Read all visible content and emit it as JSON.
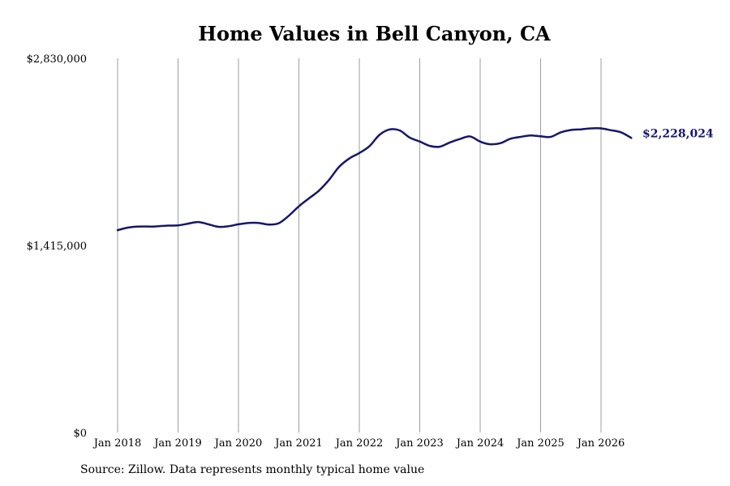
{
  "colors": {
    "line": "#16176b",
    "gridline": "#9e9e9e",
    "text": "#000000"
  },
  "chart_data": {
    "type": "line",
    "title": "Home Values in Bell Canyon, CA",
    "xlabel": "",
    "ylabel": "",
    "ylim": [
      0,
      2830000
    ],
    "y_ticks": [
      0,
      1415000,
      2830000
    ],
    "y_tick_labels": [
      "$0",
      "$1,415,000",
      "$2,830,000"
    ],
    "x_ticks": [
      "2018-01",
      "2019-01",
      "2020-01",
      "2021-01",
      "2022-01",
      "2023-01",
      "2024-01",
      "2025-01",
      "2026-01"
    ],
    "x_tick_labels": [
      "Jan 2018",
      "Jan 2019",
      "Jan 2020",
      "Jan 2021",
      "Jan 2022",
      "Jan 2023",
      "Jan 2024",
      "Jan 2025",
      "Jan 2026"
    ],
    "grid": "vertical",
    "end_label": "$2,228,024",
    "series": [
      {
        "x": [
          "2018-01",
          "2018-03",
          "2018-05",
          "2018-08",
          "2018-11",
          "2019-01",
          "2019-03",
          "2019-05",
          "2019-07",
          "2019-09",
          "2019-11",
          "2020-01",
          "2020-03",
          "2020-05",
          "2020-07",
          "2020-09",
          "2020-11",
          "2021-01",
          "2021-03",
          "2021-05",
          "2021-07",
          "2021-09",
          "2021-11",
          "2022-01",
          "2022-03",
          "2022-05",
          "2022-07",
          "2022-09",
          "2022-11",
          "2023-01",
          "2023-03",
          "2023-05",
          "2023-07",
          "2023-09",
          "2023-11",
          "2024-01",
          "2024-03",
          "2024-05",
          "2024-07",
          "2024-09",
          "2024-11",
          "2025-01",
          "2025-03",
          "2025-05",
          "2025-07",
          "2025-09",
          "2025-11",
          "2026-01",
          "2026-03",
          "2026-05",
          "2026-07"
        ],
        "values": [
          1530000,
          1550000,
          1558000,
          1558000,
          1565000,
          1566000,
          1580000,
          1592000,
          1575000,
          1556000,
          1560000,
          1575000,
          1585000,
          1585000,
          1573000,
          1583000,
          1640000,
          1711000,
          1771000,
          1830000,
          1912000,
          2010000,
          2072000,
          2114000,
          2165000,
          2251000,
          2292000,
          2285000,
          2231000,
          2201000,
          2168000,
          2162000,
          2194000,
          2220000,
          2239000,
          2200000,
          2180000,
          2188000,
          2222000,
          2236000,
          2247000,
          2240000,
          2236000,
          2270000,
          2288000,
          2293000,
          2300000,
          2300000,
          2286000,
          2270000,
          2228024
        ]
      }
    ]
  },
  "footer": {
    "source": "Source: Zillow. Data represents monthly typical home value"
  }
}
